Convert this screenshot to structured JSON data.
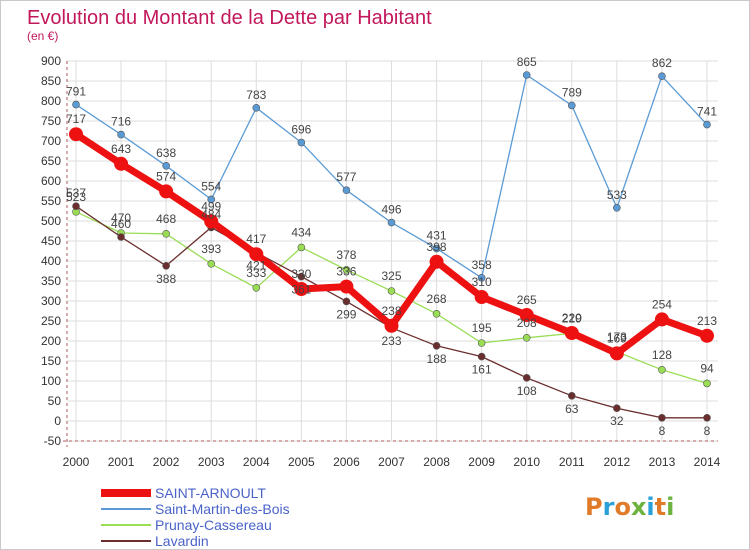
{
  "chart_data": {
    "type": "line",
    "title": "Evolution du Montant de la Dette par Habitant",
    "subtitle": "(en €)",
    "xlabel": "",
    "ylabel": "",
    "x": [
      "2000",
      "2001",
      "2002",
      "2003",
      "2004",
      "2005",
      "2006",
      "2007",
      "2008",
      "2009",
      "2010",
      "2011",
      "2012",
      "2013",
      "2014"
    ],
    "ylim": [
      -50,
      900
    ],
    "yticks": [
      -50,
      0,
      50,
      100,
      150,
      200,
      250,
      300,
      350,
      400,
      450,
      500,
      550,
      600,
      650,
      700,
      750,
      800,
      850,
      900
    ],
    "grid": true,
    "legend_position": "bottom-left",
    "series": [
      {
        "name": "SAINT-ARNOULT",
        "color": "#ee1111",
        "values": [
          717,
          643,
          574,
          499,
          417,
          330,
          336,
          238,
          398,
          310,
          265,
          220,
          169,
          254,
          213
        ]
      },
      {
        "name": "Saint-Martin-des-Bois",
        "color": "#5b9bd5",
        "values": [
          791,
          716,
          638,
          554,
          783,
          696,
          577,
          496,
          431,
          358,
          865,
          789,
          533,
          862,
          741
        ]
      },
      {
        "name": "Prunay-Cassereau",
        "color": "#99dd55",
        "values": [
          523,
          470,
          468,
          393,
          333,
          434,
          378,
          325,
          268,
          195,
          208,
          219,
          173,
          128,
          94
        ]
      },
      {
        "name": "Lavardin",
        "color": "#6b2e2e",
        "values": [
          537,
          460,
          388,
          484,
          421,
          361,
          299,
          233,
          188,
          161,
          108,
          63,
          32,
          8,
          8
        ]
      }
    ]
  },
  "brand": {
    "text": "Proxiti",
    "letters": [
      "P",
      "r",
      "o",
      "x",
      "i",
      "t",
      "i"
    ]
  }
}
